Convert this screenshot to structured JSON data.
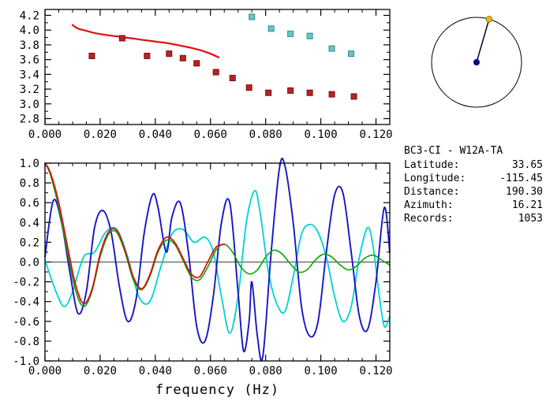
{
  "station_info": {
    "title": "BC3-CI - W12A-TA",
    "rows": [
      {
        "label": "Latitude:",
        "value": "33.65"
      },
      {
        "label": "Longitude:",
        "value": "-115.45"
      },
      {
        "label": "Distance:",
        "value": "190.30"
      },
      {
        "label": "Azimuth:",
        "value": "16.21"
      },
      {
        "label": "Records:",
        "value": "1053"
      }
    ]
  },
  "colors": {
    "axis": "#000000",
    "red": "#dd1111",
    "dark_red_marker": "#bb2222",
    "cyan_marker": "#64c8c8",
    "blue": "#1515c8",
    "cyan": "#00d2d2",
    "green": "#00aa00"
  },
  "chart_data": [
    {
      "name": "group-velocity-dispersion",
      "type": "scatter",
      "title": "",
      "xlabel": "",
      "ylabel": "",
      "xlim": [
        0,
        0.125
      ],
      "ylim": [
        2.72,
        4.28
      ],
      "xticks": [
        0,
        0.02,
        0.04,
        0.06,
        0.08,
        0.1,
        0.12
      ],
      "xtick_labels": [
        "0.000",
        "0.020",
        "0.040",
        "0.060",
        "0.080",
        "0.100",
        "0.120"
      ],
      "yticks": [
        2.8,
        3.0,
        3.2,
        3.4,
        3.6,
        3.8,
        4.0,
        4.2
      ],
      "ytick_labels": [
        "2.8",
        "3.0",
        "3.2",
        "3.4",
        "3.6",
        "3.8",
        "4.0",
        "4.2"
      ],
      "xminor": [
        0.005,
        0.01,
        0.015,
        0.025,
        0.03,
        0.035,
        0.045,
        0.05,
        0.055,
        0.065,
        0.07,
        0.075,
        0.085,
        0.09,
        0.095,
        0.105,
        0.11,
        0.115
      ],
      "yminor": [
        2.9,
        3.1,
        3.3,
        3.5,
        3.7,
        3.9,
        4.1
      ],
      "grid": false,
      "legend": "none",
      "series": [
        {
          "name": "model-dispersion-curve",
          "type": "line",
          "color": "#dd1111",
          "width": 2.2,
          "x": [
            0.01,
            0.012,
            0.015,
            0.018,
            0.021,
            0.025,
            0.029,
            0.033,
            0.037,
            0.041,
            0.045,
            0.049,
            0.053,
            0.057,
            0.06,
            0.063
          ],
          "y": [
            4.07,
            4.02,
            3.99,
            3.96,
            3.94,
            3.92,
            3.9,
            3.88,
            3.86,
            3.84,
            3.82,
            3.79,
            3.76,
            3.72,
            3.68,
            3.63
          ]
        },
        {
          "name": "picked-group-velocity",
          "type": "scatter",
          "marker": "square",
          "color": "#bb2222",
          "edge": "#7a0f0f",
          "x": [
            0.017,
            0.028,
            0.037,
            0.045,
            0.05,
            0.055,
            0.062,
            0.068,
            0.074,
            0.081,
            0.089,
            0.096,
            0.104,
            0.112
          ],
          "y": [
            3.65,
            3.89,
            3.65,
            3.68,
            3.62,
            3.55,
            3.43,
            3.35,
            3.22,
            3.15,
            3.18,
            3.15,
            3.13,
            3.1
          ]
        },
        {
          "name": "alternate-picks",
          "type": "scatter",
          "marker": "square",
          "color": "#64c8c8",
          "edge": "#2e8b8b",
          "x": [
            0.075,
            0.082,
            0.089,
            0.096,
            0.104,
            0.111
          ],
          "y": [
            4.18,
            4.02,
            3.95,
            3.92,
            3.75,
            3.68
          ]
        }
      ]
    },
    {
      "name": "spectra-panel",
      "type": "line",
      "title": "",
      "xlabel": "frequency (Hz)",
      "ylabel": "",
      "xlim": [
        0,
        0.125
      ],
      "ylim": [
        -1.0,
        1.0
      ],
      "zero_line": true,
      "xticks": [
        0,
        0.02,
        0.04,
        0.06,
        0.08,
        0.1,
        0.12
      ],
      "xtick_labels": [
        "0.000",
        "0.020",
        "0.040",
        "0.060",
        "0.080",
        "0.100",
        "0.120"
      ],
      "yticks": [
        -1.0,
        -0.8,
        -0.6,
        -0.4,
        -0.2,
        0.0,
        0.2,
        0.4,
        0.6,
        0.8,
        1.0
      ],
      "ytick_labels": [
        "-1.0",
        "-0.8",
        "-0.6",
        "-0.4",
        "-0.2",
        "0.0",
        "0.2",
        "0.4",
        "0.6",
        "0.8",
        "1.0"
      ],
      "xminor": [
        0.005,
        0.01,
        0.015,
        0.025,
        0.03,
        0.035,
        0.045,
        0.05,
        0.055,
        0.065,
        0.07,
        0.075,
        0.085,
        0.09,
        0.095,
        0.105,
        0.11,
        0.115
      ],
      "yminor": [
        -0.9,
        -0.7,
        -0.5,
        -0.3,
        -0.1,
        0.1,
        0.3,
        0.5,
        0.7,
        0.9
      ],
      "grid": false,
      "legend": "none",
      "series": [
        {
          "name": "spectrum-cyan",
          "type": "line",
          "color": "#00d2d2",
          "width": 1.8,
          "x": [
            0.0,
            0.004,
            0.007,
            0.01,
            0.014,
            0.018,
            0.022,
            0.026,
            0.03,
            0.034,
            0.038,
            0.042,
            0.046,
            0.05,
            0.054,
            0.058,
            0.061,
            0.064,
            0.067,
            0.07,
            0.073,
            0.076,
            0.078,
            0.081,
            0.084,
            0.087,
            0.09,
            0.093,
            0.096,
            0.099,
            0.102,
            0.105,
            0.108,
            0.111,
            0.114,
            0.117,
            0.119,
            0.121,
            0.123,
            0.125
          ],
          "y": [
            0.02,
            -0.3,
            -0.45,
            -0.3,
            0.05,
            0.1,
            0.3,
            0.33,
            0.05,
            -0.35,
            -0.4,
            -0.05,
            0.28,
            0.33,
            0.2,
            0.25,
            0.1,
            -0.35,
            -0.72,
            -0.35,
            0.4,
            0.72,
            0.5,
            -0.1,
            -0.42,
            -0.5,
            -0.15,
            0.28,
            0.38,
            0.3,
            0.05,
            -0.35,
            -0.6,
            -0.45,
            0.05,
            0.35,
            0.15,
            -0.3,
            -0.65,
            -0.55
          ]
        },
        {
          "name": "spectrum-blue",
          "type": "line",
          "color": "#1515c8",
          "width": 1.9,
          "x": [
            0.0,
            0.003,
            0.006,
            0.009,
            0.012,
            0.015,
            0.018,
            0.021,
            0.024,
            0.027,
            0.03,
            0.033,
            0.036,
            0.039,
            0.041,
            0.044,
            0.046,
            0.049,
            0.052,
            0.055,
            0.058,
            0.061,
            0.064,
            0.067,
            0.07,
            0.072,
            0.074,
            0.075,
            0.077,
            0.079,
            0.082,
            0.085,
            0.087,
            0.09,
            0.093,
            0.096,
            0.099,
            0.102,
            0.105,
            0.108,
            0.111,
            0.114,
            0.117,
            0.12,
            0.123,
            0.125
          ],
          "y": [
            0.05,
            0.62,
            0.4,
            -0.1,
            -0.52,
            -0.3,
            0.35,
            0.52,
            0.3,
            -0.25,
            -0.6,
            -0.38,
            0.3,
            0.68,
            0.55,
            0.1,
            0.45,
            0.6,
            0.1,
            -0.65,
            -0.8,
            -0.35,
            0.4,
            0.6,
            -0.3,
            -0.9,
            -0.6,
            -0.2,
            -0.75,
            -0.95,
            0.1,
            0.95,
            0.97,
            0.4,
            -0.45,
            -0.75,
            -0.6,
            0.1,
            0.68,
            0.7,
            0.1,
            -0.55,
            -0.68,
            -0.2,
            0.55,
            0.1
          ]
        },
        {
          "name": "spectrum-green",
          "type": "line",
          "color": "#00aa00",
          "width": 1.6,
          "x": [
            0.0,
            0.002,
            0.005,
            0.008,
            0.011,
            0.014,
            0.017,
            0.02,
            0.023,
            0.026,
            0.029,
            0.032,
            0.035,
            0.038,
            0.041,
            0.044,
            0.047,
            0.05,
            0.053,
            0.056,
            0.059,
            0.062,
            0.065,
            0.068,
            0.071,
            0.074,
            0.077,
            0.08,
            0.083,
            0.086,
            0.089,
            0.092,
            0.095,
            0.098,
            0.101,
            0.104,
            0.107,
            0.11,
            0.113,
            0.116,
            0.119,
            0.122,
            0.125
          ],
          "y": [
            1.0,
            0.88,
            0.55,
            0.12,
            -0.28,
            -0.45,
            -0.3,
            0.05,
            0.28,
            0.3,
            0.1,
            -0.18,
            -0.28,
            -0.15,
            0.1,
            0.22,
            0.18,
            0.02,
            -0.15,
            -0.18,
            -0.05,
            0.12,
            0.18,
            0.1,
            -0.05,
            -0.12,
            -0.08,
            0.05,
            0.12,
            0.08,
            -0.02,
            -0.1,
            -0.08,
            0.02,
            0.08,
            0.05,
            -0.03,
            -0.08,
            -0.04,
            0.04,
            0.07,
            0.02,
            -0.03
          ]
        },
        {
          "name": "spectrum-red",
          "type": "line",
          "color": "#dd1111",
          "width": 1.8,
          "x": [
            0.0,
            0.002,
            0.005,
            0.008,
            0.011,
            0.014,
            0.017,
            0.02,
            0.023,
            0.026,
            0.029,
            0.032,
            0.035,
            0.038,
            0.041,
            0.044,
            0.047,
            0.05,
            0.053,
            0.056,
            0.059,
            0.062,
            0.065
          ],
          "y": [
            1.0,
            0.9,
            0.6,
            0.18,
            -0.22,
            -0.42,
            -0.28,
            0.08,
            0.3,
            0.32,
            0.12,
            -0.15,
            -0.27,
            -0.13,
            0.12,
            0.25,
            0.2,
            0.04,
            -0.12,
            -0.15,
            0.0,
            0.15,
            0.18
          ]
        }
      ]
    },
    {
      "name": "great-circle-dial",
      "type": "other",
      "azimuth_deg": 16.21,
      "ring_color": "#000000",
      "pointer_color": "#101040",
      "origin_dot_color": "#000080",
      "target_dot_color": "#f0b400"
    }
  ]
}
